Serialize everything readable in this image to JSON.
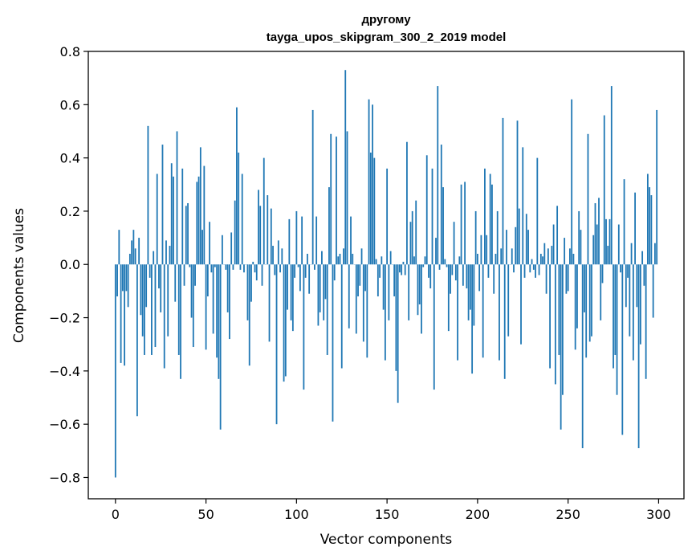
{
  "chart_data": {
    "type": "bar",
    "title_line1": "другому",
    "title_line2": "tayga_upos_skipgram_300_2_2019 model",
    "xlabel": "Vector components",
    "ylabel": "Components values",
    "xlim": [
      -15,
      314
    ],
    "ylim": [
      -0.88,
      0.8
    ],
    "xticks": [
      0,
      50,
      100,
      150,
      200,
      250,
      300
    ],
    "xtick_labels": [
      "0",
      "50",
      "100",
      "150",
      "200",
      "250",
      "300"
    ],
    "yticks": [
      -0.8,
      -0.6,
      -0.4,
      -0.2,
      0.0,
      0.2,
      0.4,
      0.6,
      0.8
    ],
    "ytick_labels": [
      "−0.8",
      "−0.6",
      "−0.4",
      "−0.2",
      "0.0",
      "0.2",
      "0.4",
      "0.6",
      "0.8"
    ],
    "grid": false,
    "bar_color": "#1f77b4",
    "values": [
      -0.8,
      -0.12,
      0.13,
      -0.37,
      -0.1,
      -0.38,
      -0.1,
      -0.16,
      0.04,
      0.09,
      0.13,
      0.06,
      -0.57,
      0.1,
      -0.19,
      -0.27,
      -0.34,
      -0.16,
      0.52,
      -0.05,
      -0.34,
      0.05,
      -0.31,
      0.34,
      -0.09,
      -0.18,
      0.45,
      -0.39,
      0.09,
      -0.27,
      0.07,
      0.38,
      0.33,
      -0.14,
      0.5,
      -0.34,
      -0.43,
      0.36,
      -0.08,
      0.22,
      0.23,
      -0.01,
      -0.2,
      -0.31,
      -0.08,
      0.31,
      0.33,
      0.44,
      0.13,
      0.37,
      -0.32,
      -0.12,
      0.16,
      -0.03,
      -0.26,
      -0.01,
      -0.35,
      -0.43,
      -0.62,
      0.11,
      0.0,
      -0.02,
      -0.18,
      -0.28,
      0.12,
      -0.02,
      0.24,
      0.59,
      0.42,
      -0.02,
      0.34,
      -0.03,
      0.0,
      -0.21,
      -0.38,
      -0.14,
      0.01,
      -0.03,
      -0.06,
      0.28,
      0.22,
      -0.08,
      0.4,
      0.0,
      0.26,
      -0.29,
      0.21,
      0.07,
      -0.04,
      -0.6,
      0.09,
      -0.03,
      0.06,
      -0.44,
      -0.42,
      -0.17,
      0.17,
      -0.21,
      -0.25,
      -0.05,
      0.2,
      -0.01,
      -0.1,
      0.18,
      -0.47,
      -0.05,
      0.04,
      -0.11,
      0.0,
      0.58,
      -0.02,
      0.18,
      -0.23,
      -0.18,
      0.05,
      -0.21,
      -0.13,
      -0.34,
      0.29,
      0.49,
      -0.59,
      -0.06,
      0.48,
      0.03,
      0.04,
      -0.39,
      0.06,
      0.73,
      0.5,
      -0.24,
      0.18,
      0.04,
      0.0,
      -0.26,
      -0.12,
      -0.08,
      0.06,
      -0.29,
      -0.1,
      -0.35,
      0.62,
      0.42,
      0.6,
      0.4,
      0.02,
      -0.12,
      -0.05,
      0.03,
      -0.17,
      -0.36,
      0.36,
      -0.21,
      0.05,
      0.0,
      -0.12,
      -0.4,
      -0.52,
      -0.03,
      -0.04,
      0.01,
      -0.04,
      0.46,
      -0.21,
      0.16,
      0.2,
      0.03,
      0.24,
      -0.19,
      -0.15,
      -0.26,
      -0.01,
      0.03,
      0.41,
      -0.05,
      -0.09,
      0.36,
      -0.47,
      0.1,
      0.67,
      -0.02,
      0.45,
      0.29,
      0.02,
      -0.01,
      -0.25,
      -0.11,
      -0.04,
      0.16,
      -0.06,
      -0.36,
      0.03,
      0.3,
      -0.08,
      0.31,
      -0.09,
      -0.21,
      -0.17,
      -0.41,
      -0.23,
      0.2,
      0.04,
      -0.1,
      0.11,
      -0.35,
      0.36,
      0.11,
      -0.05,
      0.34,
      0.3,
      -0.11,
      0.04,
      0.2,
      -0.36,
      0.06,
      0.55,
      -0.43,
      0.13,
      -0.27,
      0.0,
      0.06,
      -0.03,
      0.14,
      0.54,
      0.21,
      -0.3,
      0.44,
      -0.05,
      0.19,
      0.13,
      -0.03,
      0.02,
      -0.02,
      -0.05,
      0.4,
      -0.04,
      0.04,
      0.03,
      0.08,
      -0.11,
      0.06,
      -0.39,
      0.07,
      0.15,
      -0.45,
      0.22,
      -0.34,
      -0.62,
      -0.49,
      0.1,
      -0.11,
      -0.1,
      0.06,
      0.62,
      0.04,
      -0.32,
      -0.24,
      0.2,
      0.13,
      -0.69,
      -0.18,
      -0.35,
      0.49,
      -0.29,
      -0.27,
      0.11,
      0.23,
      0.15,
      0.25,
      -0.21,
      -0.07,
      0.56,
      0.17,
      0.07,
      0.17,
      0.67,
      -0.39,
      -0.34,
      -0.49,
      0.15,
      -0.03,
      -0.64,
      0.32,
      -0.16,
      -0.05,
      -0.27,
      0.08,
      -0.36,
      0.27,
      -0.16,
      -0.69,
      -0.3,
      0.05,
      -0.08,
      -0.43,
      0.34,
      0.29,
      0.26,
      -0.2,
      0.08,
      0.58
    ]
  }
}
